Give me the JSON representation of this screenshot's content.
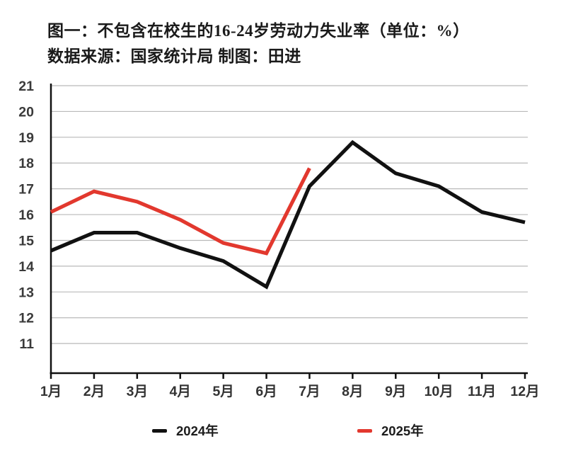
{
  "title": "图一：不包含在校生的16-24岁劳动力失业率（单位：%）",
  "subtitle": "数据来源：国家统计局 制图：田进",
  "colors": {
    "background": "#ffffff",
    "grid": "#b9b9b9",
    "axis": "#111111",
    "series_2024": "#111111",
    "series_2025": "#e2382e",
    "tick_label": "#3a3a3a",
    "title_text": "#1a1a1a"
  },
  "legend": [
    {
      "label": "2024年",
      "color": "#111111"
    },
    {
      "label": "2025年",
      "color": "#e2382e"
    }
  ],
  "chart_data": {
    "type": "line",
    "title": "图一：不包含在校生的16-24岁劳动力失业率（单位：%）",
    "source_note": "数据来源：国家统计局 制图：田进",
    "categories": [
      "1月",
      "2月",
      "3月",
      "4月",
      "5月",
      "6月",
      "7月",
      "8月",
      "9月",
      "10月",
      "11月",
      "12月"
    ],
    "series": [
      {
        "name": "2024年",
        "color": "#111111",
        "values": [
          14.6,
          15.3,
          15.3,
          14.7,
          14.2,
          13.2,
          17.1,
          18.8,
          17.6,
          17.1,
          16.1,
          15.7
        ]
      },
      {
        "name": "2025年",
        "color": "#e2382e",
        "values": [
          16.1,
          16.9,
          16.5,
          15.8,
          14.9,
          14.5,
          17.8
        ]
      }
    ],
    "xlabel": "",
    "ylabel": "",
    "y_ticks": [
      11,
      12,
      13,
      14,
      15,
      16,
      17,
      18,
      19,
      20,
      21
    ],
    "ylim": [
      9.85,
      21
    ],
    "grid": true,
    "legend_position": "bottom"
  }
}
